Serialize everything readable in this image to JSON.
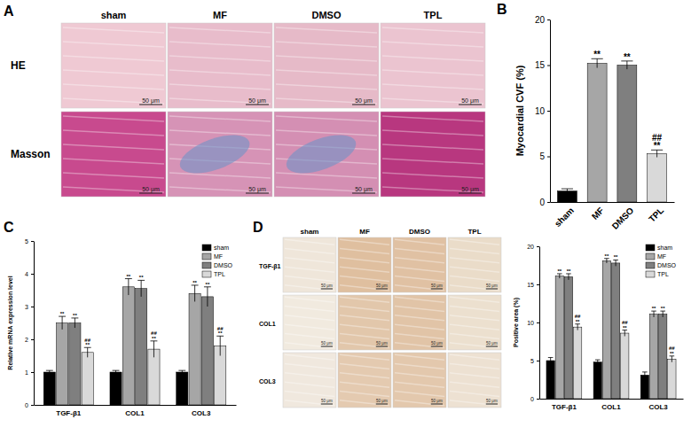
{
  "chart_data": [
    {
      "type": "bar",
      "panel_label": "B",
      "y_label": "Myocardial CVF (%)",
      "categories": [
        "sham",
        "MF",
        "DMSO",
        "TPL"
      ],
      "values": [
        1.2,
        15.2,
        15.0,
        5.3
      ],
      "errors": [
        0.25,
        0.5,
        0.45,
        0.4
      ],
      "significance": [
        null,
        [
          "**"
        ],
        [
          "**"
        ],
        [
          "##",
          "**"
        ]
      ],
      "colors": [
        "#000000",
        "#a6a6a6",
        "#7f7f7f",
        "#d9d9d9"
      ],
      "ylim": [
        0,
        20
      ],
      "yticks": [
        0,
        5,
        10,
        15,
        20
      ]
    },
    {
      "type": "bar",
      "panel_label": "C",
      "y_label": "Relative mRNA expression level",
      "categories": [
        "TGF-β1",
        "COL1",
        "COL3"
      ],
      "series": [
        {
          "name": "sham",
          "color": "#000000",
          "values": [
            1.0,
            1.0,
            1.0
          ],
          "errors": [
            0.05,
            0.05,
            0.05
          ],
          "significance": [
            null,
            null,
            null
          ]
        },
        {
          "name": "MF",
          "color": "#a6a6a6",
          "values": [
            2.5,
            3.6,
            3.4
          ],
          "errors": [
            0.2,
            0.25,
            0.25
          ],
          "significance": [
            [
              "**"
            ],
            [
              "**"
            ],
            [
              "**"
            ]
          ]
        },
        {
          "name": "DMSO",
          "color": "#7f7f7f",
          "values": [
            2.5,
            3.55,
            3.3
          ],
          "errors": [
            0.15,
            0.25,
            0.3
          ],
          "significance": [
            [
              "**"
            ],
            [
              "**"
            ],
            [
              "**"
            ]
          ]
        },
        {
          "name": "TPL",
          "color": "#d9d9d9",
          "values": [
            1.6,
            1.7,
            1.8
          ],
          "errors": [
            0.15,
            0.25,
            0.3
          ],
          "significance": [
            [
              "##",
              "**"
            ],
            [
              "##",
              "**"
            ],
            [
              "##",
              "**"
            ]
          ]
        }
      ],
      "ylim": [
        0,
        5
      ],
      "yticks": [
        0,
        1,
        2,
        3,
        4,
        5
      ],
      "legend": "top-right"
    },
    {
      "type": "bar",
      "y_label": "Positive area (%)",
      "categories": [
        "TGF-β1",
        "COL1",
        "COL3"
      ],
      "series": [
        {
          "name": "sham",
          "color": "#000000",
          "values": [
            5.0,
            4.8,
            3.1
          ],
          "errors": [
            0.4,
            0.3,
            0.4
          ],
          "significance": [
            null,
            null,
            null
          ]
        },
        {
          "name": "MF",
          "color": "#a6a6a6",
          "values": [
            16.1,
            18.1,
            11.1
          ],
          "errors": [
            0.3,
            0.3,
            0.4
          ],
          "significance": [
            [
              "**"
            ],
            [
              "**"
            ],
            [
              "**"
            ]
          ]
        },
        {
          "name": "DMSO",
          "color": "#7f7f7f",
          "values": [
            16.0,
            17.8,
            11.1
          ],
          "errors": [
            0.4,
            0.4,
            0.4
          ],
          "significance": [
            [
              "**"
            ],
            [
              "**"
            ],
            [
              "**"
            ]
          ]
        },
        {
          "name": "TPL",
          "color": "#d9d9d9",
          "values": [
            9.4,
            8.6,
            5.2
          ],
          "errors": [
            0.4,
            0.4,
            0.4
          ],
          "significance": [
            [
              "##",
              "**"
            ],
            [
              "##",
              "**"
            ],
            [
              "##",
              "**"
            ]
          ]
        }
      ],
      "ylim": [
        0,
        20
      ],
      "yticks": [
        0,
        5,
        10,
        15,
        20
      ],
      "legend": "top-right"
    }
  ],
  "image_panels": [
    {
      "panel_label": "A",
      "columns": [
        "sham",
        "MF",
        "DMSO",
        "TPL"
      ],
      "rows": [
        "HE",
        "Masson"
      ],
      "scale_bar": "50 μm"
    },
    {
      "panel_label": "D",
      "columns": [
        "sham",
        "MF",
        "DMSO",
        "TPL"
      ],
      "rows": [
        "TGF-β1",
        "COL1",
        "COL3"
      ],
      "scale_bar": "50 μm"
    }
  ]
}
